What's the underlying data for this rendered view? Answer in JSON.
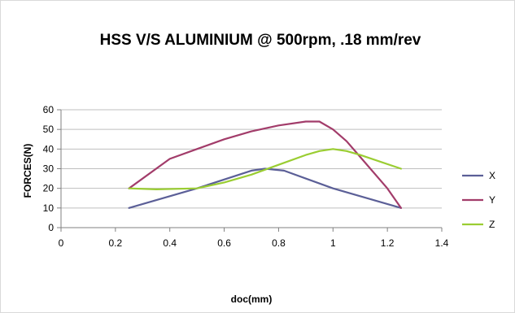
{
  "chart_data": {
    "type": "line",
    "title": "HSS V/S ALUMINIUM @ 500rpm, .18 mm/rev",
    "xlabel": "doc(mm)",
    "ylabel": "FORCES(N)",
    "xlim": [
      0,
      1.4
    ],
    "ylim": [
      0,
      60
    ],
    "x_ticks": [
      "0",
      "0.2",
      "0.4",
      "0.6",
      "0.8",
      "1",
      "1.2",
      "1.4"
    ],
    "y_ticks": [
      "0",
      "10",
      "20",
      "30",
      "40",
      "50",
      "60"
    ],
    "grid": "horizontal",
    "legend_position": "right",
    "series": [
      {
        "name": "X",
        "color": "#5b5f97",
        "x": [
          0.25,
          0.5,
          0.7,
          0.75,
          0.82,
          1.0,
          1.25
        ],
        "y": [
          10,
          20,
          29,
          30,
          29,
          20,
          10
        ]
      },
      {
        "name": "Y",
        "color": "#a23c6a",
        "x": [
          0.25,
          0.4,
          0.5,
          0.6,
          0.7,
          0.8,
          0.9,
          0.95,
          1.0,
          1.05,
          1.1,
          1.2,
          1.25
        ],
        "y": [
          20,
          35,
          40,
          45,
          49,
          52,
          54,
          54,
          50,
          44,
          36,
          20,
          10
        ]
      },
      {
        "name": "Z",
        "color": "#9acd32",
        "x": [
          0.25,
          0.35,
          0.5,
          0.6,
          0.7,
          0.8,
          0.9,
          0.95,
          1.0,
          1.05,
          1.1,
          1.25
        ],
        "y": [
          20,
          19.5,
          20,
          23,
          27,
          32,
          37,
          39,
          40,
          39,
          37,
          30
        ]
      }
    ]
  }
}
